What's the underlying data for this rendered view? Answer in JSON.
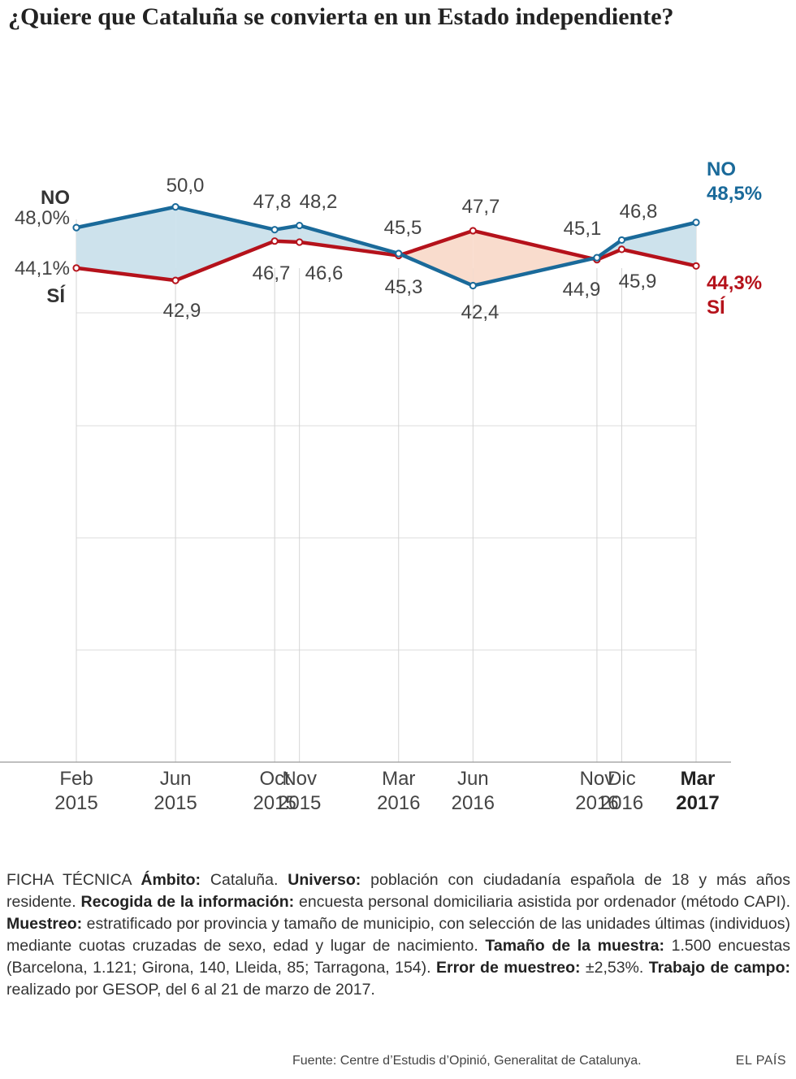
{
  "title": "¿Quiere que Cataluña se convierta en un Estado independiente?",
  "chart_data": {
    "type": "line",
    "title": "¿Quiere que Cataluña se convierta en un Estado independiente?",
    "categories": [
      {
        "month": "Feb",
        "year": "2015",
        "bold": false
      },
      {
        "month": "Jun",
        "year": "2015",
        "bold": false
      },
      {
        "month": "Oct",
        "year": "2015",
        "bold": false
      },
      {
        "month": "Nov",
        "year": "2015",
        "bold": false
      },
      {
        "month": "Mar",
        "year": "2016",
        "bold": false
      },
      {
        "month": "Jun",
        "year": "2016",
        "bold": false
      },
      {
        "month": "Nov",
        "year": "2016",
        "bold": false
      },
      {
        "month": "Dic",
        "year": "2016",
        "bold": false
      },
      {
        "month": "Mar",
        "year": "2017",
        "bold": true
      }
    ],
    "x": [
      "2015-02",
      "2015-06",
      "2015-10",
      "2015-11",
      "2016-03",
      "2016-06",
      "2016-11",
      "2016-12",
      "2017-03"
    ],
    "series": [
      {
        "name": "NO",
        "color": "#1a6a9a",
        "values": [
          48.0,
          50.0,
          47.8,
          48.2,
          45.5,
          42.4,
          45.1,
          46.8,
          48.5
        ],
        "labels": [
          "48,0%",
          "50,0",
          "47,8",
          "48,2",
          "45,5",
          "42,4",
          "45,1",
          "46,8",
          "48,5%"
        ],
        "fill_color": "#cde2ec"
      },
      {
        "name": "SÍ",
        "color": "#b5121b",
        "values": [
          44.1,
          42.9,
          46.7,
          46.6,
          45.3,
          47.7,
          44.9,
          45.9,
          44.3
        ],
        "labels": [
          "44,1%",
          "42,9",
          "46,7",
          "46,6",
          "45,3",
          "47,7",
          "44,9",
          "45,9",
          "44,3%"
        ],
        "fill_color": "#f9dccd"
      }
    ],
    "grid": true
  },
  "ficha": {
    "p1": "FICHA TÉCNICA ",
    "b1": "Ámbito:",
    "p2": " Cataluña. ",
    "b2": "Universo:",
    "p3": " población con ciudadanía española de 18 y más años residente. ",
    "b3": "Recogida de la información:",
    "p4": " encuesta personal domiciliaria asistida por ordenador (método CAPI). ",
    "b4": "Muestreo:",
    "p5": " estratificado por provincia y tamaño de municipio, con selección de las unidades últimas (individuos) mediante cuotas cruzadas de sexo, edad y lugar de nacimiento. ",
    "b5": "Tamaño de la muestra:",
    "p6": " 1.500 encuestas (Barcelona, 1.121; Girona, 140, Lleida, 85; Tarragona, 154). ",
    "b6": "Error de muestreo:",
    "p7": " ±2,53%. ",
    "b7": "Trabajo de campo:",
    "p8": " realizado por GESOP,  del 6 al 21 de marzo de 2017."
  },
  "source": "Fuente: Centre d’Estudis d’Opinió, Generalitat de Catalunya.",
  "brand": "EL PAÍS"
}
